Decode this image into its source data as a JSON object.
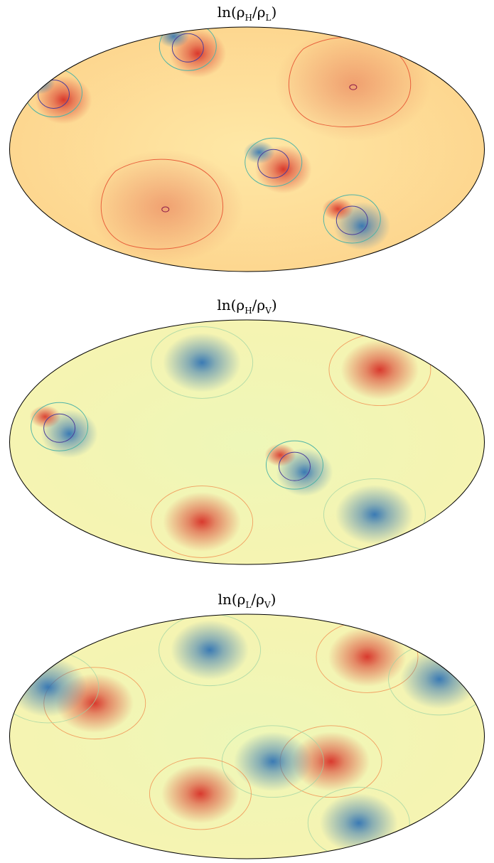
{
  "chart_data": [
    {
      "type": "heatmap",
      "title_parts": {
        "pre": "ln(ρ",
        "sub1": "H",
        "mid": "/ρ",
        "sub2": "L",
        "post": ")"
      },
      "projection": "mollweide",
      "colormap": "Spectral",
      "colorbar": false,
      "features": [
        {
          "kind": "dipole",
          "lon": 60,
          "lat": 62,
          "sign": 1
        },
        {
          "kind": "dipole",
          "lon": 152,
          "lat": 30,
          "sign": 1
        },
        {
          "kind": "dipole",
          "lon": -28,
          "lat": -12,
          "sign": 1
        },
        {
          "kind": "dipole",
          "lon": -112,
          "lat": -48,
          "sign": -1
        },
        {
          "kind": "broad",
          "lon": -95,
          "lat": 40,
          "sign": 1
        },
        {
          "kind": "broad",
          "lon": 70,
          "lat": -35,
          "sign": 1
        }
      ]
    },
    {
      "type": "heatmap",
      "title_parts": {
        "pre": "ln(ρ",
        "sub1": "H",
        "mid": "/ρ",
        "sub2": "V",
        "post": ")"
      },
      "projection": "mollweide",
      "colormap": "Spectral",
      "colorbar": false,
      "features": [
        {
          "kind": "blob",
          "lon": -125,
          "lat": 45,
          "sign": 1
        },
        {
          "kind": "blob",
          "lon": 45,
          "lat": 50,
          "sign": -1
        },
        {
          "kind": "dipole",
          "lon": 135,
          "lat": 5,
          "sign": -1
        },
        {
          "kind": "dipole",
          "lon": -45,
          "lat": -18,
          "sign": -1
        },
        {
          "kind": "blob",
          "lon": 45,
          "lat": -50,
          "sign": 1
        },
        {
          "kind": "blob",
          "lon": -120,
          "lat": -45,
          "sign": -1
        }
      ]
    },
    {
      "type": "heatmap",
      "title_parts": {
        "pre": "ln(ρ",
        "sub1": "L",
        "mid": "/ρ",
        "sub2": "V",
        "post": ")"
      },
      "projection": "mollweide",
      "colormap": "Spectral",
      "colorbar": false,
      "features": [
        {
          "kind": "blob",
          "lon": -120,
          "lat": 50,
          "sign": 1
        },
        {
          "kind": "blob",
          "lon": 40,
          "lat": 55,
          "sign": -1
        },
        {
          "kind": "blob",
          "lon": 120,
          "lat": 20,
          "sign": 1
        },
        {
          "kind": "blob",
          "lon": 165,
          "lat": 30,
          "sign": -1
        },
        {
          "kind": "blob",
          "lon": -65,
          "lat": -15,
          "sign": 1
        },
        {
          "kind": "blob",
          "lon": -20,
          "lat": -15,
          "sign": -1
        },
        {
          "kind": "blob",
          "lon": 40,
          "lat": -35,
          "sign": 1
        },
        {
          "kind": "blob",
          "lon": -120,
          "lat": -55,
          "sign": -1
        },
        {
          "kind": "blob",
          "lon": -165,
          "lat": 35,
          "sign": -1
        }
      ]
    }
  ]
}
